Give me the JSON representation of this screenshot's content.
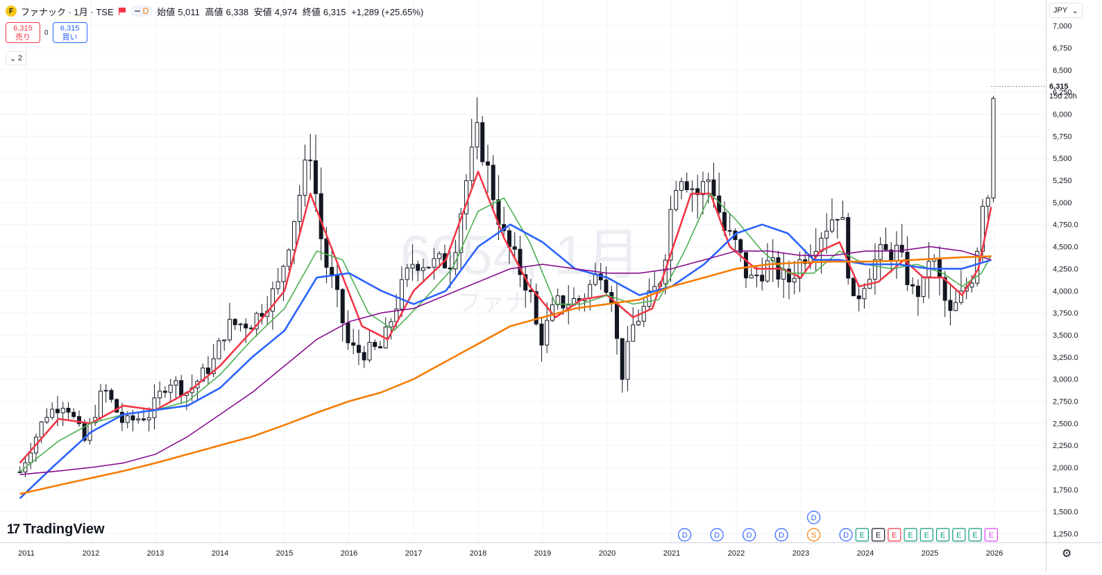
{
  "header": {
    "logo_letter": "F",
    "symbol": "ファナック · 1月 · TSE",
    "indicator_letter": "D",
    "ohlc": {
      "open_label": "始値",
      "open": "5,011",
      "high_label": "高値",
      "high": "6,338",
      "low_label": "安値",
      "low": "4,974",
      "close_label": "終値",
      "close": "6,315",
      "change": "+1,289 (+25.65%)"
    }
  },
  "trade": {
    "sell_price": "6,315",
    "sell_label": "売り",
    "spread": "0",
    "buy_price": "6,315",
    "buy_label": "買い"
  },
  "collapse_count": "2",
  "watermark": {
    "symbol": "6954, 1月",
    "name": "ファナ"
  },
  "currency": "JPY",
  "last_price": {
    "price": "6,315",
    "countdown": "15d 20h"
  },
  "branding": "TradingView",
  "colors": {
    "up": "#131722",
    "down": "#131722",
    "ma_red": "#f23645",
    "ma_green": "#4caf50",
    "ma_blue": "#2962ff",
    "ma_purple": "#880e8f",
    "ma_orange": "#f57c00"
  },
  "chart_data": {
    "type": "candlestick",
    "interval": "1 month",
    "y_scale": "linear",
    "grid": true,
    "y_ticks": [
      1250,
      1500,
      1750,
      2000,
      2250,
      2500,
      2750,
      3000,
      3250,
      3500,
      3750,
      4000,
      4250,
      4500,
      4750,
      5000,
      5250,
      5500,
      5750,
      6000,
      6250,
      6500,
      6750,
      7000
    ],
    "y_tick_labels": [
      "1,250.0",
      "1,500.0",
      "1,750.0",
      "2,000.0",
      "2,250.0",
      "2,500.0",
      "2,750.0",
      "3,000.0",
      "3,250.0",
      "3,500.0",
      "3,750.0",
      "4,000.0",
      "4,250.0",
      "4,500.0",
      "4,750.0",
      "5,000",
      "5,250",
      "5,500",
      "5,750",
      "6,000",
      "6,250",
      "6,500",
      "6,750",
      "7,000"
    ],
    "x_labels": [
      "2011",
      "2012",
      "2013",
      "2014",
      "2015",
      "2016",
      "2017",
      "2018",
      "2019",
      "2020",
      "2021",
      "2022",
      "2023",
      "2024",
      "2025",
      "2026"
    ],
    "price_anchors": [
      [
        2010.9,
        1950
      ],
      [
        2011.3,
        2600
      ],
      [
        2011.6,
        2750
      ],
      [
        2011.9,
        2300
      ],
      [
        2012.2,
        2900
      ],
      [
        2012.5,
        2500
      ],
      [
        2012.9,
        2600
      ],
      [
        2013.2,
        3000
      ],
      [
        2013.5,
        2850
      ],
      [
        2013.9,
        3200
      ],
      [
        2014.1,
        3600
      ],
      [
        2014.5,
        3650
      ],
      [
        2014.9,
        4050
      ],
      [
        2015.2,
        5000
      ],
      [
        2015.4,
        5600
      ],
      [
        2015.6,
        4400
      ],
      [
        2015.8,
        3950
      ],
      [
        2016.0,
        3350
      ],
      [
        2016.2,
        3300
      ],
      [
        2016.5,
        3350
      ],
      [
        2016.8,
        4000
      ],
      [
        2017.0,
        4350
      ],
      [
        2017.3,
        4300
      ],
      [
        2017.6,
        4350
      ],
      [
        2017.8,
        5200
      ],
      [
        2018.0,
        5800
      ],
      [
        2018.2,
        5200
      ],
      [
        2018.4,
        4600
      ],
      [
        2018.6,
        4300
      ],
      [
        2018.8,
        4000
      ],
      [
        2018.95,
        3400
      ],
      [
        2019.2,
        3850
      ],
      [
        2019.6,
        3900
      ],
      [
        2019.9,
        4250
      ],
      [
        2020.1,
        3900
      ],
      [
        2020.2,
        2950
      ],
      [
        2020.4,
        3600
      ],
      [
        2020.7,
        3950
      ],
      [
        2020.85,
        4200
      ],
      [
        2021.0,
        5000
      ],
      [
        2021.1,
        5400
      ],
      [
        2021.4,
        5100
      ],
      [
        2021.6,
        5300
      ],
      [
        2021.8,
        4700
      ],
      [
        2022.0,
        4500
      ],
      [
        2022.2,
        4100
      ],
      [
        2022.5,
        4300
      ],
      [
        2022.8,
        4100
      ],
      [
        2023.0,
        4350
      ],
      [
        2023.3,
        4650
      ],
      [
        2023.6,
        4950
      ],
      [
        2023.7,
        4500
      ],
      [
        2023.8,
        3800
      ],
      [
        2024.0,
        4150
      ],
      [
        2024.2,
        4400
      ],
      [
        2024.5,
        4450
      ],
      [
        2024.75,
        3950
      ],
      [
        2024.9,
        4050
      ],
      [
        2025.0,
        4450
      ],
      [
        2025.15,
        4100
      ],
      [
        2025.3,
        3700
      ],
      [
        2025.5,
        3950
      ],
      [
        2025.7,
        4250
      ],
      [
        2025.8,
        5050
      ],
      [
        2025.9,
        5100
      ],
      [
        2025.95,
        6300
      ]
    ],
    "moving_averages": [
      {
        "color": "ma_red",
        "points": [
          [
            2010.9,
            2050
          ],
          [
            2011.5,
            2550
          ],
          [
            2012.0,
            2500
          ],
          [
            2012.5,
            2700
          ],
          [
            2013.0,
            2650
          ],
          [
            2013.5,
            2850
          ],
          [
            2014.0,
            3150
          ],
          [
            2014.5,
            3550
          ],
          [
            2015.0,
            4000
          ],
          [
            2015.4,
            5100
          ],
          [
            2015.8,
            4350
          ],
          [
            2016.2,
            3600
          ],
          [
            2016.6,
            3450
          ],
          [
            2017.0,
            4000
          ],
          [
            2017.5,
            4350
          ],
          [
            2018.0,
            5350
          ],
          [
            2018.4,
            4600
          ],
          [
            2018.8,
            4050
          ],
          [
            2019.2,
            3700
          ],
          [
            2019.6,
            3900
          ],
          [
            2020.0,
            3950
          ],
          [
            2020.4,
            3700
          ],
          [
            2020.7,
            3800
          ],
          [
            2021.0,
            4450
          ],
          [
            2021.3,
            5100
          ],
          [
            2021.6,
            5100
          ],
          [
            2021.9,
            4500
          ],
          [
            2022.3,
            4250
          ],
          [
            2022.7,
            4250
          ],
          [
            2023.0,
            4150
          ],
          [
            2023.3,
            4450
          ],
          [
            2023.6,
            4550
          ],
          [
            2023.9,
            4050
          ],
          [
            2024.2,
            4100
          ],
          [
            2024.6,
            4350
          ],
          [
            2024.9,
            4150
          ],
          [
            2025.2,
            4150
          ],
          [
            2025.5,
            3950
          ],
          [
            2025.75,
            4250
          ],
          [
            2025.95,
            4950
          ]
        ]
      },
      {
        "color": "ma_green",
        "points": [
          [
            2010.9,
            1950
          ],
          [
            2011.5,
            2300
          ],
          [
            2012.0,
            2500
          ],
          [
            2012.5,
            2600
          ],
          [
            2013.0,
            2650
          ],
          [
            2013.5,
            2750
          ],
          [
            2014.0,
            3050
          ],
          [
            2014.5,
            3450
          ],
          [
            2015.0,
            3800
          ],
          [
            2015.5,
            4450
          ],
          [
            2015.9,
            4350
          ],
          [
            2016.3,
            3750
          ],
          [
            2016.7,
            3550
          ],
          [
            2017.1,
            3850
          ],
          [
            2017.6,
            4250
          ],
          [
            2018.0,
            4900
          ],
          [
            2018.4,
            5050
          ],
          [
            2018.8,
            4550
          ],
          [
            2019.2,
            3850
          ],
          [
            2019.6,
            3850
          ],
          [
            2020.0,
            3950
          ],
          [
            2020.4,
            3850
          ],
          [
            2020.8,
            3900
          ],
          [
            2021.2,
            4450
          ],
          [
            2021.6,
            5100
          ],
          [
            2022.0,
            4800
          ],
          [
            2022.4,
            4450
          ],
          [
            2022.8,
            4200
          ],
          [
            2023.2,
            4200
          ],
          [
            2023.6,
            4450
          ],
          [
            2024.0,
            4300
          ],
          [
            2024.4,
            4250
          ],
          [
            2024.8,
            4300
          ],
          [
            2025.2,
            4200
          ],
          [
            2025.5,
            4050
          ],
          [
            2025.8,
            4200
          ],
          [
            2025.95,
            4400
          ]
        ]
      },
      {
        "color": "ma_blue",
        "points": [
          [
            2010.9,
            1650
          ],
          [
            2011.4,
            2000
          ],
          [
            2012.0,
            2400
          ],
          [
            2012.5,
            2600
          ],
          [
            2013.0,
            2650
          ],
          [
            2013.5,
            2700
          ],
          [
            2014.0,
            2900
          ],
          [
            2014.5,
            3250
          ],
          [
            2015.0,
            3550
          ],
          [
            2015.5,
            4150
          ],
          [
            2016.0,
            4200
          ],
          [
            2016.5,
            4000
          ],
          [
            2017.0,
            3850
          ],
          [
            2017.5,
            4000
          ],
          [
            2018.0,
            4500
          ],
          [
            2018.5,
            4750
          ],
          [
            2019.0,
            4550
          ],
          [
            2019.5,
            4250
          ],
          [
            2020.0,
            4150
          ],
          [
            2020.5,
            3950
          ],
          [
            2021.0,
            4050
          ],
          [
            2021.5,
            4300
          ],
          [
            2022.0,
            4650
          ],
          [
            2022.4,
            4750
          ],
          [
            2022.8,
            4650
          ],
          [
            2023.2,
            4350
          ],
          [
            2023.6,
            4350
          ],
          [
            2024.0,
            4300
          ],
          [
            2024.5,
            4300
          ],
          [
            2025.0,
            4250
          ],
          [
            2025.5,
            4250
          ],
          [
            2025.95,
            4350
          ]
        ]
      },
      {
        "color": "ma_purple",
        "points": [
          [
            2010.9,
            1920
          ],
          [
            2011.5,
            1960
          ],
          [
            2012.0,
            2000
          ],
          [
            2012.5,
            2050
          ],
          [
            2013.0,
            2150
          ],
          [
            2013.5,
            2350
          ],
          [
            2014.0,
            2600
          ],
          [
            2014.5,
            2850
          ],
          [
            2015.0,
            3150
          ],
          [
            2015.5,
            3450
          ],
          [
            2016.0,
            3650
          ],
          [
            2016.5,
            3750
          ],
          [
            2017.0,
            3800
          ],
          [
            2017.5,
            3950
          ],
          [
            2018.0,
            4100
          ],
          [
            2018.5,
            4250
          ],
          [
            2019.0,
            4300
          ],
          [
            2019.5,
            4250
          ],
          [
            2020.0,
            4200
          ],
          [
            2020.5,
            4200
          ],
          [
            2021.0,
            4250
          ],
          [
            2021.5,
            4350
          ],
          [
            2022.0,
            4450
          ],
          [
            2022.5,
            4450
          ],
          [
            2023.0,
            4400
          ],
          [
            2023.5,
            4400
          ],
          [
            2024.0,
            4450
          ],
          [
            2024.5,
            4450
          ],
          [
            2025.0,
            4500
          ],
          [
            2025.5,
            4450
          ],
          [
            2025.95,
            4350
          ]
        ]
      },
      {
        "color": "ma_orange",
        "points": [
          [
            2010.9,
            1700
          ],
          [
            2011.5,
            1800
          ],
          [
            2012.0,
            1880
          ],
          [
            2012.5,
            1960
          ],
          [
            2013.0,
            2050
          ],
          [
            2013.5,
            2150
          ],
          [
            2014.0,
            2250
          ],
          [
            2014.5,
            2350
          ],
          [
            2015.0,
            2480
          ],
          [
            2015.5,
            2620
          ],
          [
            2016.0,
            2750
          ],
          [
            2016.5,
            2850
          ],
          [
            2017.0,
            3000
          ],
          [
            2017.5,
            3200
          ],
          [
            2018.0,
            3400
          ],
          [
            2018.5,
            3600
          ],
          [
            2019.0,
            3700
          ],
          [
            2019.5,
            3800
          ],
          [
            2020.0,
            3850
          ],
          [
            2020.5,
            3900
          ],
          [
            2021.0,
            4050
          ],
          [
            2021.5,
            4150
          ],
          [
            2022.0,
            4250
          ],
          [
            2022.5,
            4300
          ],
          [
            2023.0,
            4320
          ],
          [
            2023.5,
            4330
          ],
          [
            2024.0,
            4330
          ],
          [
            2024.5,
            4340
          ],
          [
            2025.0,
            4360
          ],
          [
            2025.5,
            4380
          ],
          [
            2025.95,
            4390
          ]
        ]
      }
    ],
    "events": [
      {
        "label": "D",
        "kind": "dividend",
        "x": 2021.2
      },
      {
        "label": "D",
        "kind": "dividend",
        "x": 2021.7
      },
      {
        "label": "D",
        "kind": "dividend",
        "x": 2022.2
      },
      {
        "label": "D",
        "kind": "dividend",
        "x": 2022.7
      },
      {
        "label": "D",
        "kind": "dividend",
        "x": 2023.2,
        "row": 2
      },
      {
        "label": "S",
        "kind": "split",
        "x": 2023.2
      },
      {
        "label": "D",
        "kind": "dividend",
        "x": 2023.7
      },
      {
        "label": "E",
        "kind": "earnings",
        "x": 2023.95
      },
      {
        "label": "E",
        "kind": "earnings-past",
        "x": 2024.2
      },
      {
        "label": "E",
        "kind": "earnings-red",
        "x": 2024.45
      },
      {
        "label": "E",
        "kind": "earnings",
        "x": 2024.7
      },
      {
        "label": "E",
        "kind": "earnings",
        "x": 2024.95
      },
      {
        "label": "E",
        "kind": "earnings",
        "x": 2025.2
      },
      {
        "label": "E",
        "kind": "earnings",
        "x": 2025.45
      },
      {
        "label": "E",
        "kind": "earnings",
        "x": 2025.7
      },
      {
        "label": "E",
        "kind": "earnings-future",
        "x": 2025.95
      }
    ]
  }
}
